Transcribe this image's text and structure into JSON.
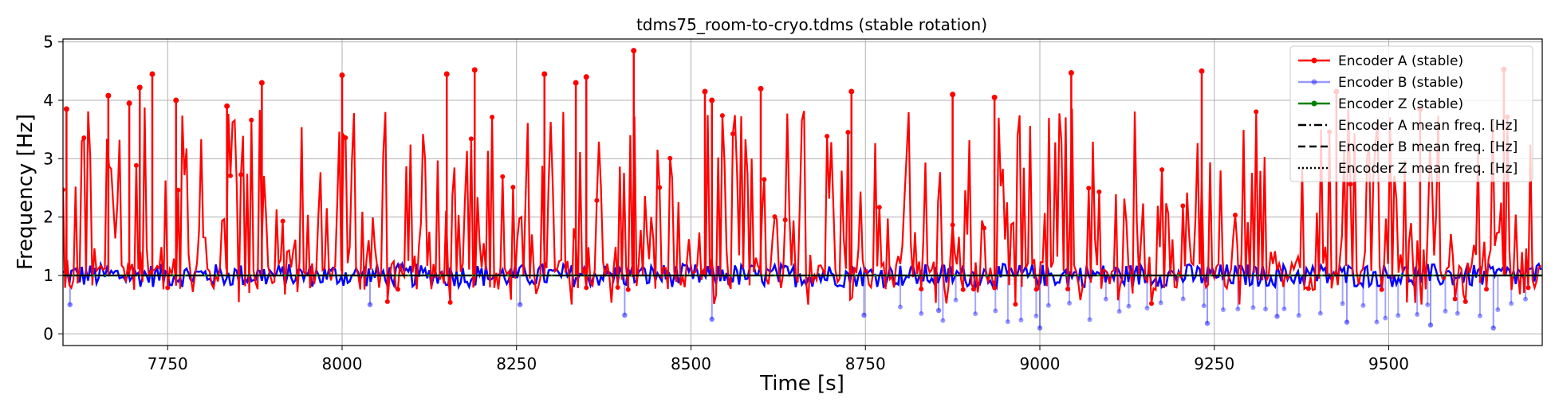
{
  "chart_data": {
    "type": "line",
    "title": "tdms75_room-to-cryo.tdms (stable rotation)",
    "xlabel": "Time [s]",
    "ylabel": "Frequency [Hz]",
    "xlim": [
      7600,
      9720
    ],
    "ylim": [
      -0.2,
      5.05
    ],
    "xticks": [
      7750,
      8000,
      8250,
      8500,
      8750,
      9000,
      9250,
      9500
    ],
    "yticks": [
      0,
      1,
      2,
      3,
      4,
      5
    ],
    "grid": true,
    "legend_position": "top-right",
    "series": [
      {
        "name": "Encoder A (stable)",
        "color": "#ff0000",
        "style": "solid-marker",
        "baseline": 1.0,
        "peaks": [
          {
            "x": 7605,
            "y": 3.85
          },
          {
            "x": 7665,
            "y": 4.08
          },
          {
            "x": 7695,
            "y": 3.95
          },
          {
            "x": 7710,
            "y": 4.22
          },
          {
            "x": 7728,
            "y": 4.45
          },
          {
            "x": 7762,
            "y": 4.0
          },
          {
            "x": 7835,
            "y": 3.9
          },
          {
            "x": 7885,
            "y": 4.3
          },
          {
            "x": 8000,
            "y": 4.43
          },
          {
            "x": 8150,
            "y": 4.45
          },
          {
            "x": 8190,
            "y": 4.52
          },
          {
            "x": 8290,
            "y": 4.45
          },
          {
            "x": 8335,
            "y": 4.3
          },
          {
            "x": 8350,
            "y": 4.4
          },
          {
            "x": 8418,
            "y": 4.85
          },
          {
            "x": 8520,
            "y": 4.15
          },
          {
            "x": 8530,
            "y": 4.0
          },
          {
            "x": 8600,
            "y": 4.2
          },
          {
            "x": 8730,
            "y": 4.15
          },
          {
            "x": 8875,
            "y": 4.1
          },
          {
            "x": 8935,
            "y": 4.05
          },
          {
            "x": 9045,
            "y": 4.47
          },
          {
            "x": 9232,
            "y": 4.5
          },
          {
            "x": 9425,
            "y": 4.15
          },
          {
            "x": 9545,
            "y": 3.85
          },
          {
            "x": 9665,
            "y": 4.53
          }
        ]
      },
      {
        "name": "Encoder B (stable)",
        "color": "#0000ff",
        "style": "solid-marker",
        "baseline": 1.0,
        "dips": [
          {
            "x": 7610,
            "y": 0.5
          },
          {
            "x": 8040,
            "y": 0.5
          },
          {
            "x": 8255,
            "y": 0.5
          },
          {
            "x": 8405,
            "y": 0.32
          },
          {
            "x": 8530,
            "y": 0.25
          },
          {
            "x": 8748,
            "y": 0.32
          },
          {
            "x": 8855,
            "y": 0.4
          },
          {
            "x": 9000,
            "y": 0.1
          },
          {
            "x": 9240,
            "y": 0.18
          },
          {
            "x": 9340,
            "y": 0.3
          },
          {
            "x": 9440,
            "y": 0.2
          },
          {
            "x": 9560,
            "y": 0.15
          },
          {
            "x": 9650,
            "y": 0.1
          }
        ]
      },
      {
        "name": "Encoder Z (stable)",
        "color": "#008000",
        "style": "solid-marker",
        "baseline": 1.0
      },
      {
        "name": "Encoder A mean freq. [Hz]",
        "color": "#000000",
        "style": "dash-dot",
        "value": 1.0
      },
      {
        "name": "Encoder B mean freq. [Hz]",
        "color": "#000000",
        "style": "dashed",
        "value": 1.0
      },
      {
        "name": "Encoder Z mean freq. [Hz]",
        "color": "#000000",
        "style": "dotted",
        "value": 1.0
      }
    ]
  }
}
